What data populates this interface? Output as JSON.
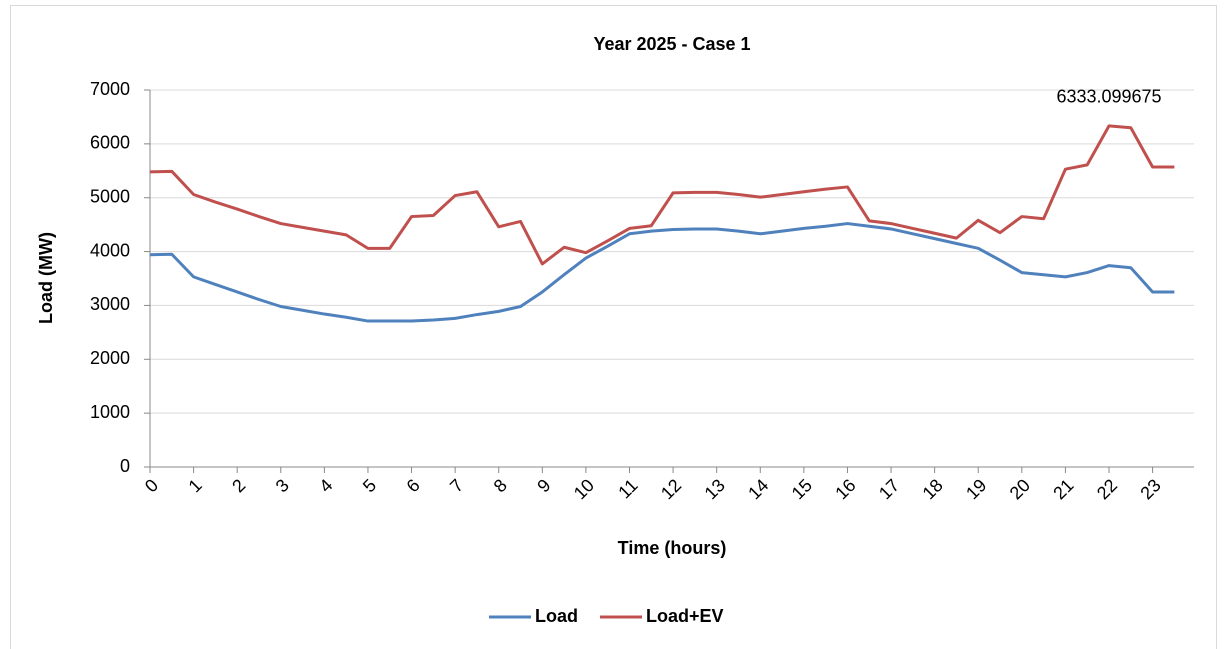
{
  "chart_data": {
    "type": "line",
    "title": "Year 2025 - Case 1",
    "x_label": "Time (hours)",
    "y_label": "Load (MW)",
    "x": [
      0,
      0.5,
      1,
      1.5,
      2,
      2.5,
      3,
      3.5,
      4,
      4.5,
      5,
      5.5,
      6,
      6.5,
      7,
      7.5,
      8,
      8.5,
      9,
      9.5,
      10,
      10.5,
      11,
      11.5,
      12,
      12.5,
      13,
      13.5,
      14,
      14.5,
      15,
      15.5,
      16,
      16.5,
      17,
      17.5,
      18,
      18.5,
      19,
      19.5,
      20,
      20.5,
      21,
      21.5,
      22,
      22.5,
      23,
      23.5
    ],
    "series": [
      {
        "name": "Load",
        "color": "#4f81bd",
        "values": [
          3940,
          3950,
          3530,
          3390,
          3250,
          3110,
          2980,
          2910,
          2840,
          2780,
          2710,
          2710,
          2710,
          2730,
          2760,
          2830,
          2890,
          2980,
          3250,
          3570,
          3880,
          4100,
          4330,
          4380,
          4410,
          4420,
          4420,
          4380,
          4330,
          4380,
          4430,
          4470,
          4520,
          4470,
          4420,
          4330,
          4240,
          4150,
          4060,
          3840,
          3610,
          3570,
          3530,
          3610,
          3740,
          3700,
          3250,
          3250
        ]
      },
      {
        "name": "Load+EV",
        "color": "#c0504d",
        "values": [
          5480,
          5490,
          5060,
          4920,
          4790,
          4650,
          4520,
          4450,
          4380,
          4310,
          4060,
          4060,
          4650,
          4670,
          5040,
          5110,
          4460,
          4560,
          3770,
          4080,
          3980,
          4200,
          4430,
          4480,
          5090,
          5100,
          5100,
          5060,
          5010,
          5060,
          5110,
          5160,
          5200,
          4570,
          4520,
          4430,
          4340,
          4250,
          4580,
          4350,
          4650,
          4610,
          5530,
          5610,
          6333.099675,
          6300,
          5570,
          5570
        ],
        "value_labels": [
          null,
          null,
          null,
          null,
          null,
          null,
          null,
          null,
          null,
          null,
          null,
          null,
          null,
          null,
          null,
          null,
          null,
          null,
          null,
          null,
          null,
          null,
          null,
          null,
          null,
          null,
          null,
          null,
          null,
          null,
          null,
          null,
          null,
          null,
          null,
          null,
          null,
          null,
          null,
          null,
          null,
          null,
          null,
          null,
          "6333.099675",
          null,
          null,
          null
        ]
      }
    ],
    "xlim": [
      0,
      23.95
    ],
    "xticks": [
      0,
      1,
      2,
      3,
      4,
      5,
      6,
      7,
      8,
      9,
      10,
      11,
      12,
      13,
      14,
      15,
      16,
      17,
      18,
      19,
      20,
      21,
      22,
      23
    ],
    "ylim": [
      0,
      7000
    ],
    "yticks": [
      0,
      1000,
      2000,
      3000,
      4000,
      5000,
      6000,
      7000
    ],
    "grid": true,
    "legend": "bottom"
  }
}
